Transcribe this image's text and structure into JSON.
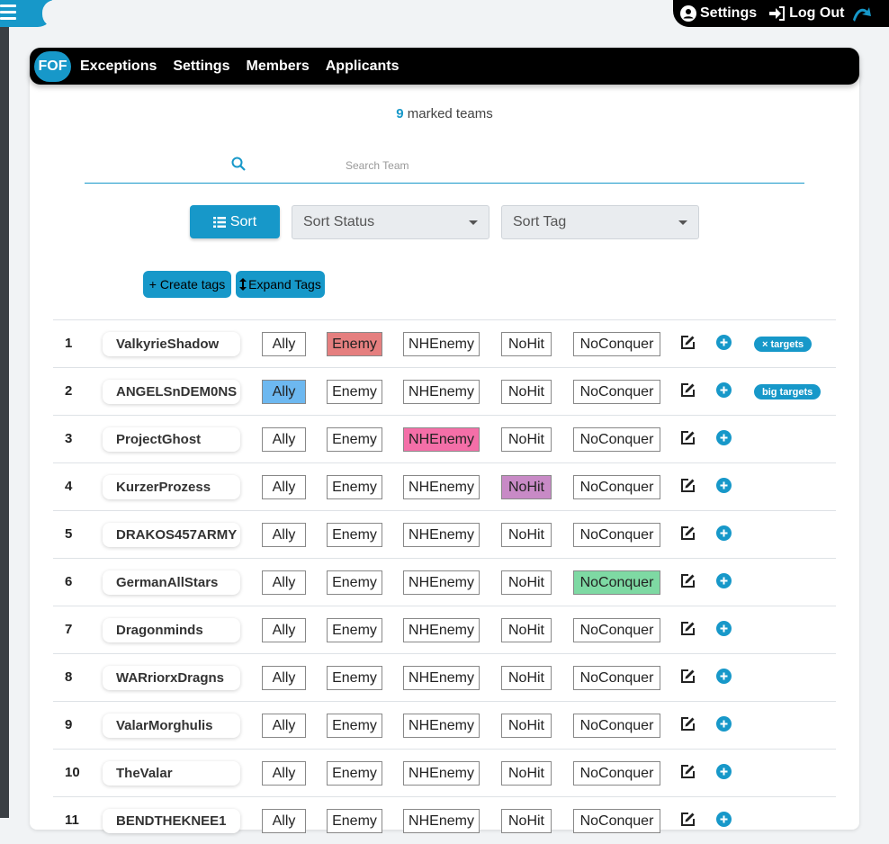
{
  "topbar": {
    "settings_label": "Settings",
    "logout_label": "Log Out"
  },
  "nav": {
    "active": "FOF",
    "items": [
      "Exceptions",
      "Settings",
      "Members",
      "Applicants"
    ]
  },
  "summary": {
    "count": "9",
    "text": "marked teams"
  },
  "search": {
    "placeholder": "Search Team"
  },
  "controls": {
    "sort_label": "Sort",
    "sort_status": "Sort Status",
    "sort_tag": "Sort Tag",
    "create_tags": "+ Create tags",
    "expand_tags": "Expand Tags"
  },
  "statuses": [
    "Ally",
    "Enemy",
    "NHEnemy",
    "NoHit",
    "NoConquer"
  ],
  "colors": {
    "accent": "#1798c9",
    "Ally": "#6db8f0",
    "Enemy": "#e57f7f",
    "NHEnemy": "#f46fa8",
    "NoHit": "#c88ac6",
    "NoConquer": "#7ed9a3"
  },
  "teams": [
    {
      "index": "1",
      "name": "ValkyrieShadow",
      "active": "Enemy",
      "badge": "× targets"
    },
    {
      "index": "2",
      "name": "ANGELSnDEM0NS",
      "active": "Ally",
      "badge": "big targets"
    },
    {
      "index": "3",
      "name": "ProjectGhost",
      "active": "NHEnemy",
      "badge": ""
    },
    {
      "index": "4",
      "name": "KurzerProzess",
      "active": "NoHit",
      "badge": ""
    },
    {
      "index": "5",
      "name": "DRAKOS457ARMY",
      "active": "",
      "badge": ""
    },
    {
      "index": "6",
      "name": "GermanAllStars",
      "active": "NoConquer",
      "badge": ""
    },
    {
      "index": "7",
      "name": "Dragonminds",
      "active": "",
      "badge": ""
    },
    {
      "index": "8",
      "name": "WARriorxDragns",
      "active": "",
      "badge": ""
    },
    {
      "index": "9",
      "name": "ValarMorghulis",
      "active": "",
      "badge": ""
    },
    {
      "index": "10",
      "name": "TheValar",
      "active": "",
      "badge": ""
    },
    {
      "index": "11",
      "name": "BENDTHEKNEE1",
      "active": "",
      "badge": ""
    }
  ]
}
